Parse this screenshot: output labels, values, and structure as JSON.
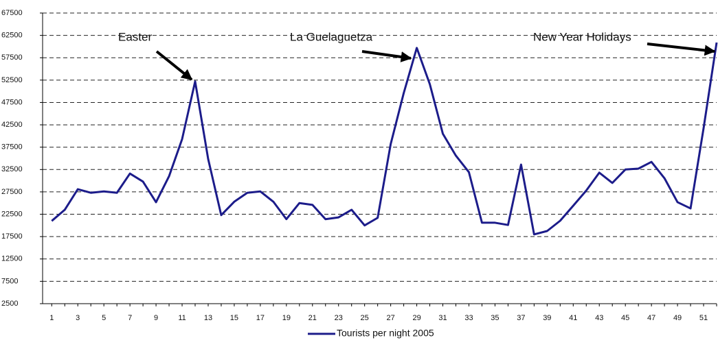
{
  "chart_data": {
    "type": "line",
    "x": [
      1,
      2,
      3,
      4,
      5,
      6,
      7,
      8,
      9,
      10,
      11,
      12,
      13,
      14,
      15,
      16,
      17,
      18,
      19,
      20,
      21,
      22,
      23,
      24,
      25,
      26,
      27,
      28,
      29,
      30,
      31,
      32,
      33,
      34,
      35,
      36,
      37,
      38,
      39,
      40,
      41,
      42,
      43,
      44,
      45,
      46,
      47,
      48,
      49,
      50,
      51,
      52
    ],
    "series": [
      {
        "name": "Tourists per night 2005",
        "color": "#1c1c8a",
        "values": [
          21000,
          23500,
          28100,
          27300,
          27600,
          27300,
          31600,
          29800,
          25200,
          31000,
          39300,
          52200,
          34850,
          22300,
          25300,
          27300,
          27600,
          25300,
          21400,
          25000,
          24600,
          21400,
          21800,
          23500,
          20000,
          21700,
          38200,
          49600,
          59700,
          51600,
          40500,
          35600,
          31900,
          20600,
          20600,
          20100,
          33600,
          18000,
          18750,
          21050,
          24400,
          27800,
          31800,
          29500,
          32500,
          32700,
          34200,
          30550,
          25200,
          23800,
          41750,
          60900
        ]
      }
    ],
    "xlim": [
      0.3,
      52
    ],
    "xticks": [
      1,
      3,
      5,
      7,
      9,
      11,
      13,
      15,
      17,
      19,
      21,
      23,
      25,
      27,
      29,
      31,
      33,
      35,
      37,
      39,
      41,
      43,
      45,
      47,
      49,
      51
    ],
    "ylim": [
      2500,
      67500
    ],
    "yticks": [
      2500,
      7500,
      12500,
      17500,
      22500,
      27500,
      32500,
      37500,
      42500,
      47500,
      52500,
      57500,
      62500,
      67500
    ],
    "grid": true,
    "legend": "bottom",
    "annotations": [
      "Easter",
      "La Guelaguetza",
      "New Year Holidays"
    ]
  }
}
